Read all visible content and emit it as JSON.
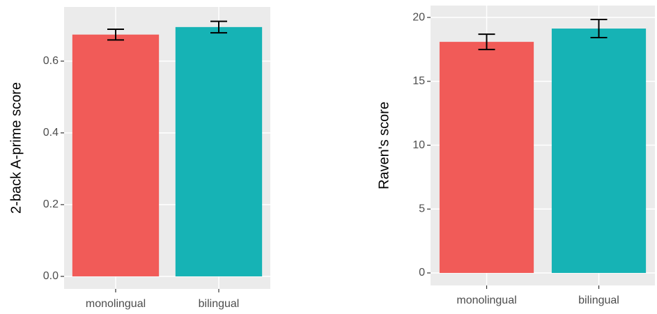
{
  "chart_data": [
    {
      "type": "bar",
      "y_label": "2-back A-prime score",
      "categories": [
        "monolingual",
        "bilingual"
      ],
      "values": [
        0.674,
        0.695
      ],
      "errors": [
        0.015,
        0.016
      ],
      "colors": [
        "#f15b58",
        "#16b3b5"
      ],
      "ylim": [
        -0.035,
        0.751
      ],
      "yticks": [
        {
          "value": 0,
          "label": "0.0"
        },
        0.2,
        0.4,
        0.6
      ],
      "grid": true
    },
    {
      "type": "bar",
      "y_label": "Raven's score",
      "categories": [
        "monolingual",
        "bilingual"
      ],
      "values": [
        18.09,
        19.13
      ],
      "errors": [
        0.6,
        0.71
      ],
      "colors": [
        "#f15b58",
        "#16b3b5"
      ],
      "ylim": [
        -0.98,
        20.93
      ],
      "yticks": [
        0,
        5,
        10,
        15,
        20
      ],
      "grid": true
    }
  ]
}
